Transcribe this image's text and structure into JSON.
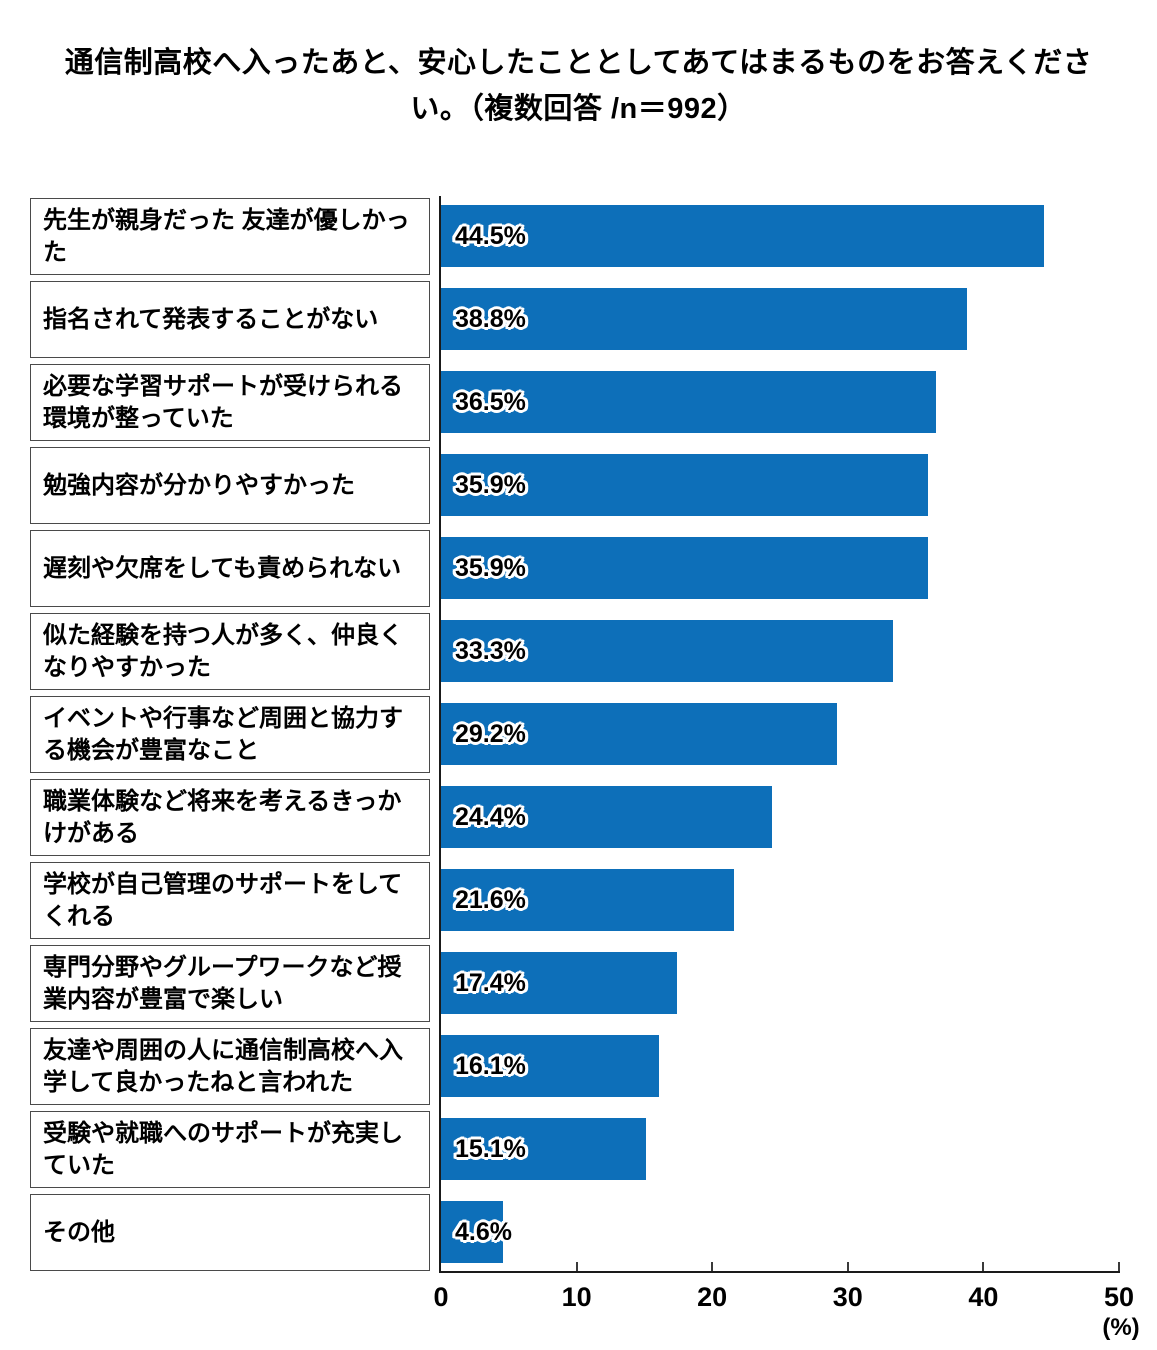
{
  "chart_data": {
    "type": "bar",
    "orientation": "horizontal",
    "title": "通信制高校へ入ったあと、安心したこととしてあてはまるものをお答えください。（複数回答 /n＝992）",
    "categories": [
      "先生が親身だった 友達が優しかった",
      "指名されて発表することがない",
      "必要な学習サポートが受けられる環境が整っていた",
      "勉強内容が分かりやすかった",
      "遅刻や欠席をしても責められない",
      "似た経験を持つ人が多く、仲良くなりやすかった",
      "イベントや行事など周囲と協力する機会が豊富なこと",
      "職業体験など将来を考えるきっかけがある",
      "学校が自己管理のサポートをしてくれる",
      "専門分野やグループワークなど授業内容が豊富で楽しい",
      "友達や周囲の人に通信制高校へ入学して良かったねと言われた",
      "受験や就職へのサポートが充実していた",
      "その他"
    ],
    "values": [
      44.5,
      38.8,
      36.5,
      35.9,
      35.9,
      33.3,
      29.2,
      24.4,
      21.6,
      17.4,
      16.1,
      15.1,
      4.6
    ],
    "value_labels": [
      "44.5%",
      "38.8%",
      "36.5%",
      "35.9%",
      "35.9%",
      "33.3%",
      "29.2%",
      "24.4%",
      "21.6%",
      "17.4%",
      "16.1%",
      "15.1%",
      "4.6%"
    ],
    "x_tick_labels": [
      "0",
      "10",
      "20",
      "30",
      "40",
      "50"
    ],
    "x_tick_values": [
      0,
      10,
      20,
      30,
      40,
      50
    ],
    "xlim": [
      0,
      50
    ],
    "xlabel": "(%)",
    "bar_color": "#0d6fb9",
    "grid": false,
    "legend_position": null
  }
}
